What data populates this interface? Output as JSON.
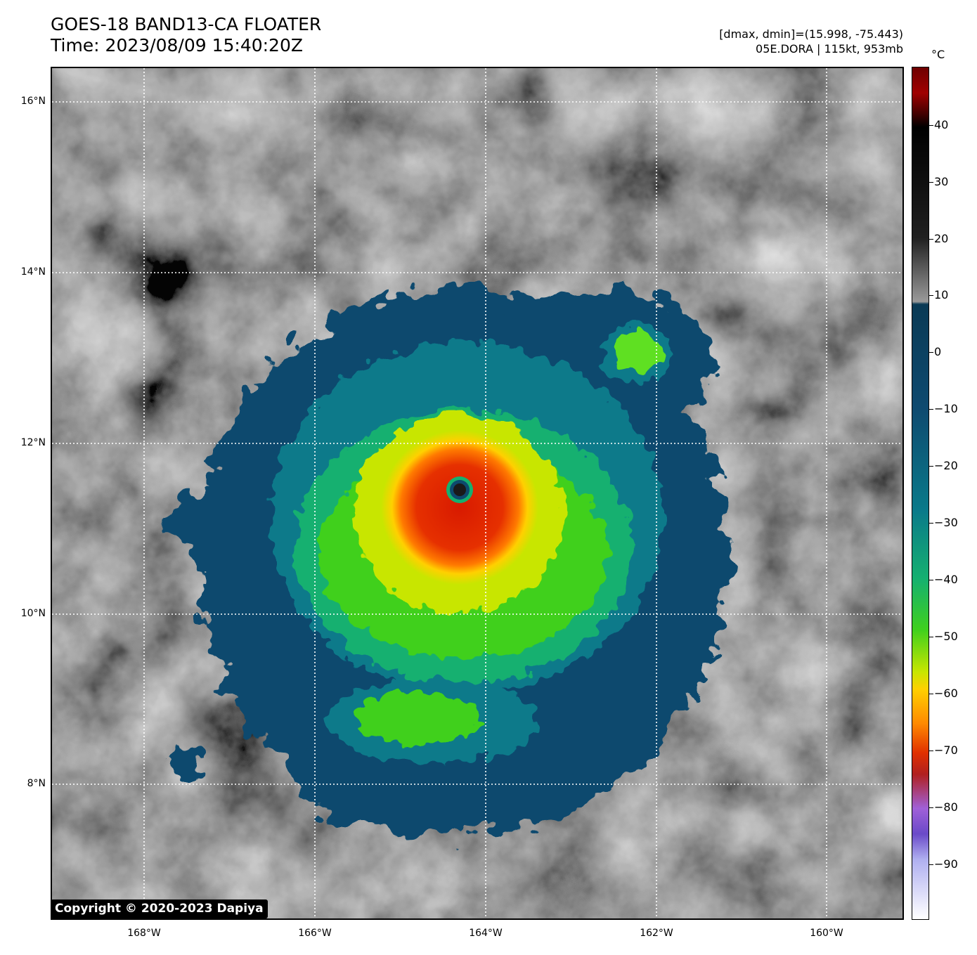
{
  "title": {
    "line1": "GOES-18 BAND13-CA FLOATER",
    "line2": "Time: 2023/08/09 15:40:20Z"
  },
  "info": {
    "line1": "[dmax, dmin]=(15.998, -75.443)",
    "line2": "05E.DORA | 115kt, 953mb"
  },
  "map": {
    "lat_labels": [
      "16°N",
      "14°N",
      "12°N",
      "10°N",
      "8°N"
    ],
    "lon_labels": [
      "168°W",
      "166°W",
      "164°W",
      "162°W",
      "160°W"
    ],
    "storm_center": {
      "lat": 11.4,
      "lon": -164.3
    }
  },
  "colorbar": {
    "unit": "°C",
    "ticks": [
      "40",
      "30",
      "20",
      "10",
      "0",
      "−10",
      "−20",
      "−30",
      "−40",
      "−50",
      "−60",
      "−70",
      "−80",
      "−90"
    ],
    "colors": {
      "warm_max": "#6e0000",
      "land_gray": "#9a9a9a",
      "cold_min": "#ffffff"
    }
  },
  "copyright": "Copyright © 2020-2023 Dapiya"
}
